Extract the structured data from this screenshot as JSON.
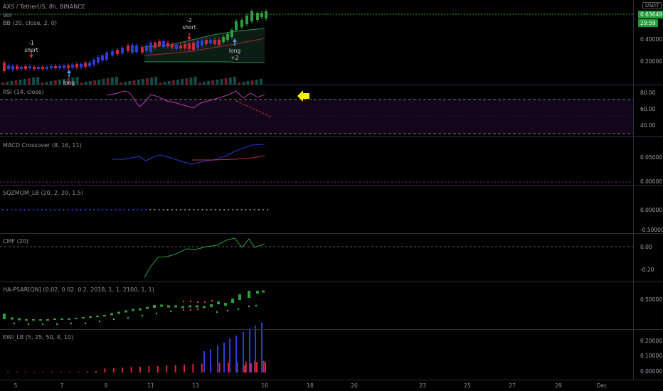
{
  "header": {
    "symbol": "AXS / TetherUS, 8h, BINANCE",
    "currency": "USDT",
    "price_badge": "0.63649",
    "timer_badge": "29:59"
  },
  "panes": {
    "main": {
      "labels": [
        "Vol",
        "BB (20, close, 2, 0)"
      ],
      "ticks": [
        "0.40000",
        "0.20000"
      ]
    },
    "rsi": {
      "label": "RSI (14, close)",
      "ticks": [
        "80.00",
        "60.00",
        "40.00"
      ]
    },
    "macd": {
      "label": "MACD Crossover (8, 16, 11)",
      "ticks": [
        "0.05000",
        "0.00000"
      ]
    },
    "sqz": {
      "label": "SQZMOM_LB (20, 2, 20, 1.5)",
      "ticks": [
        "0.00000",
        "-0.50000"
      ]
    },
    "cmf": {
      "label": "CMF (20)",
      "ticks": [
        "0.00",
        "-0.20"
      ]
    },
    "psar": {
      "label": "HA-PSAR[QN] (0.02, 0.02, 0.2, 2018, 1, 1, 2100, 1, 1)",
      "ticks": [
        "0.50000"
      ]
    },
    "ewi": {
      "label": "EWI_LB (5, 25, 50, 4, 10)",
      "ticks": [
        "0.20000",
        "0.10000",
        "0.00000"
      ]
    }
  },
  "annotations": [
    {
      "line1": "-1",
      "line2": "short"
    },
    {
      "line1": "long",
      "line2": ""
    },
    {
      "line1": "-2",
      "line2": "short"
    },
    {
      "line1": "long",
      "line2": "+2"
    }
  ],
  "x_axis": [
    "5",
    "7",
    "9",
    "11",
    "13",
    "16",
    "18",
    "20",
    "23",
    "25",
    "27",
    "29",
    "Dec"
  ],
  "colors": {
    "up": "#2e9e3a",
    "down": "#d0273a",
    "blue": "#2f3bd6",
    "rsi": "#b43bb0",
    "arrow": "#f5f200"
  }
}
